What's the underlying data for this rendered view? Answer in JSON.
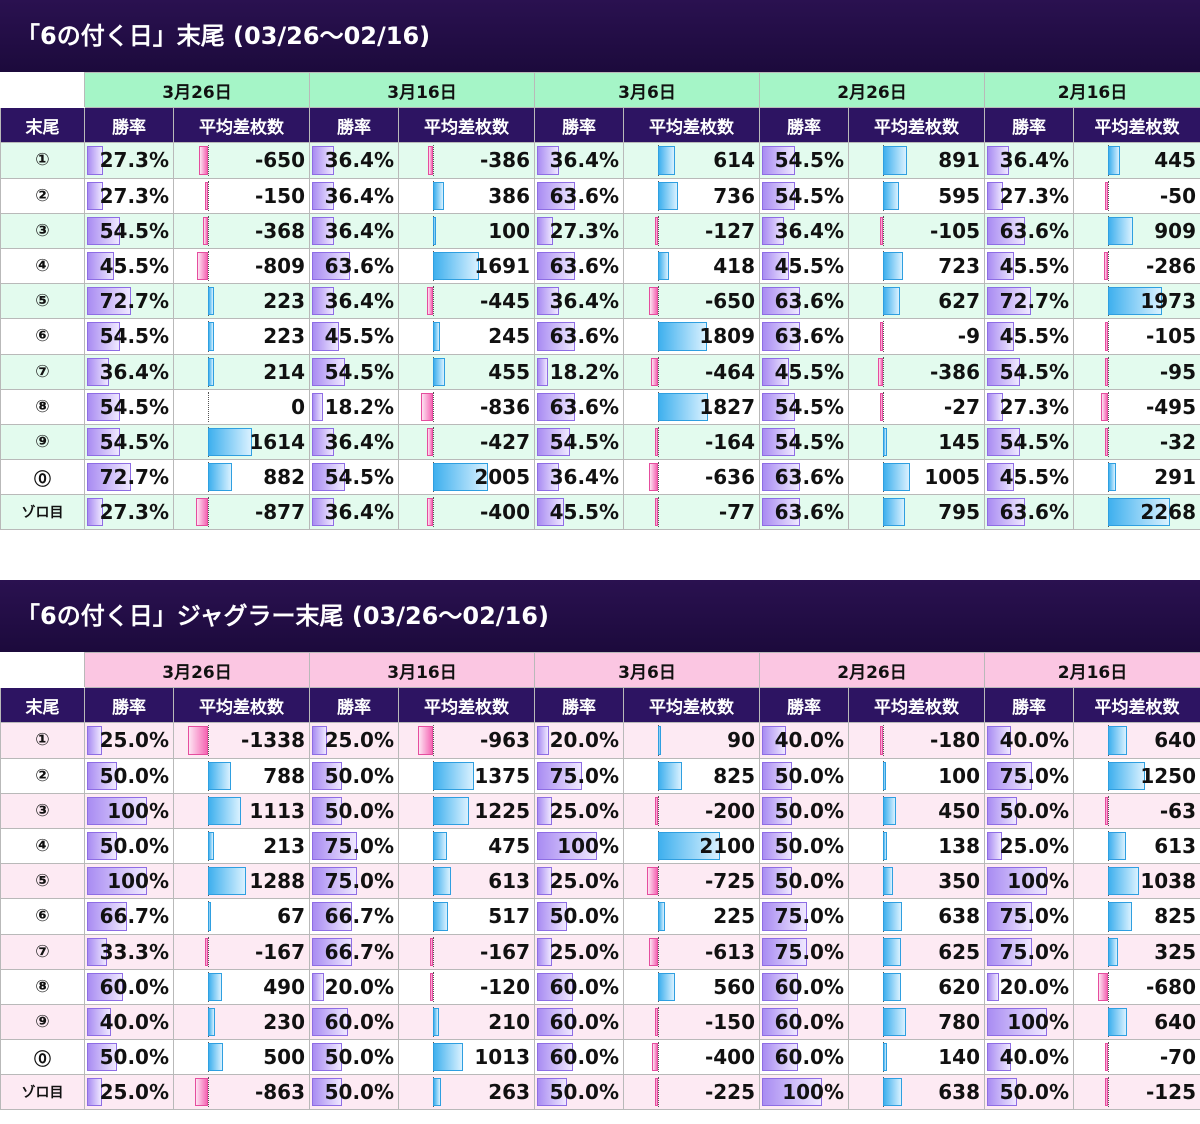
{
  "dates": [
    "3月26日",
    "3月16日",
    "3月6日",
    "2月26日",
    "2月16日"
  ],
  "headers": {
    "row": "末尾",
    "rate": "勝率",
    "diff": "平均差枚数"
  },
  "row_labels": [
    "①",
    "②",
    "③",
    "④",
    "⑤",
    "⑥",
    "⑦",
    "⑧",
    "⑨",
    "⓪",
    "ゾロ目"
  ],
  "colors": {
    "title_bg": "#1c0a3c",
    "header_bg": "#2d1462",
    "tbl1_date_bg": "#a5f5c7",
    "tbl1_alt_row": "#e3fbee",
    "tbl2_date_bg": "#fbc6e2",
    "tbl2_alt_row": "#fdeaf3",
    "rate_bar": "#a98cf2",
    "positive_bar": "#3fb0ee",
    "negative_bar": "#f566b4"
  },
  "tables": [
    {
      "title": "「6の付く日」末尾 (03/26〜02/16)",
      "rows": [
        [
          [
            "27.3%",
            -650
          ],
          [
            "36.4%",
            -386
          ],
          [
            "36.4%",
            614
          ],
          [
            "54.5%",
            891
          ],
          [
            "36.4%",
            445
          ]
        ],
        [
          [
            "27.3%",
            -150
          ],
          [
            "36.4%",
            386
          ],
          [
            "63.6%",
            736
          ],
          [
            "54.5%",
            595
          ],
          [
            "27.3%",
            -50
          ]
        ],
        [
          [
            "54.5%",
            -368
          ],
          [
            "36.4%",
            100
          ],
          [
            "27.3%",
            -127
          ],
          [
            "36.4%",
            -105
          ],
          [
            "63.6%",
            909
          ]
        ],
        [
          [
            "45.5%",
            -809
          ],
          [
            "63.6%",
            1691
          ],
          [
            "63.6%",
            418
          ],
          [
            "45.5%",
            723
          ],
          [
            "45.5%",
            -286
          ]
        ],
        [
          [
            "72.7%",
            223
          ],
          [
            "36.4%",
            -445
          ],
          [
            "36.4%",
            -650
          ],
          [
            "63.6%",
            627
          ],
          [
            "72.7%",
            1973
          ]
        ],
        [
          [
            "54.5%",
            223
          ],
          [
            "45.5%",
            245
          ],
          [
            "63.6%",
            1809
          ],
          [
            "63.6%",
            -9
          ],
          [
            "45.5%",
            -105
          ]
        ],
        [
          [
            "36.4%",
            214
          ],
          [
            "54.5%",
            455
          ],
          [
            "18.2%",
            -464
          ],
          [
            "45.5%",
            -386
          ],
          [
            "54.5%",
            -95
          ]
        ],
        [
          [
            "54.5%",
            0
          ],
          [
            "18.2%",
            -836
          ],
          [
            "63.6%",
            1827
          ],
          [
            "54.5%",
            -27
          ],
          [
            "27.3%",
            -495
          ]
        ],
        [
          [
            "54.5%",
            1614
          ],
          [
            "36.4%",
            -427
          ],
          [
            "54.5%",
            -164
          ],
          [
            "54.5%",
            145
          ],
          [
            "54.5%",
            -32
          ]
        ],
        [
          [
            "72.7%",
            882
          ],
          [
            "54.5%",
            2005
          ],
          [
            "36.4%",
            -636
          ],
          [
            "63.6%",
            1005
          ],
          [
            "45.5%",
            291
          ]
        ],
        [
          [
            "27.3%",
            -877
          ],
          [
            "36.4%",
            -400
          ],
          [
            "45.5%",
            -77
          ],
          [
            "63.6%",
            795
          ],
          [
            "63.6%",
            2268
          ]
        ]
      ]
    },
    {
      "title": "「6の付く日」ジャグラー末尾 (03/26〜02/16)",
      "rows": [
        [
          [
            "25.0%",
            -1338
          ],
          [
            "25.0%",
            -963
          ],
          [
            "20.0%",
            90
          ],
          [
            "40.0%",
            -180
          ],
          [
            "40.0%",
            640
          ]
        ],
        [
          [
            "50.0%",
            788
          ],
          [
            "50.0%",
            1375
          ],
          [
            "75.0%",
            825
          ],
          [
            "50.0%",
            100
          ],
          [
            "75.0%",
            1250
          ]
        ],
        [
          [
            "100%",
            1113
          ],
          [
            "50.0%",
            1225
          ],
          [
            "25.0%",
            -200
          ],
          [
            "50.0%",
            450
          ],
          [
            "50.0%",
            -63
          ]
        ],
        [
          [
            "50.0%",
            213
          ],
          [
            "75.0%",
            475
          ],
          [
            "100%",
            2100
          ],
          [
            "50.0%",
            138
          ],
          [
            "25.0%",
            613
          ]
        ],
        [
          [
            "100%",
            1288
          ],
          [
            "75.0%",
            613
          ],
          [
            "25.0%",
            -725
          ],
          [
            "50.0%",
            350
          ],
          [
            "100%",
            1038
          ]
        ],
        [
          [
            "66.7%",
            67
          ],
          [
            "66.7%",
            517
          ],
          [
            "50.0%",
            225
          ],
          [
            "75.0%",
            638
          ],
          [
            "75.0%",
            825
          ]
        ],
        [
          [
            "33.3%",
            -167
          ],
          [
            "66.7%",
            -167
          ],
          [
            "25.0%",
            -613
          ],
          [
            "75.0%",
            625
          ],
          [
            "75.0%",
            325
          ]
        ],
        [
          [
            "60.0%",
            490
          ],
          [
            "20.0%",
            -120
          ],
          [
            "60.0%",
            560
          ],
          [
            "60.0%",
            620
          ],
          [
            "20.0%",
            -680
          ]
        ],
        [
          [
            "40.0%",
            230
          ],
          [
            "60.0%",
            210
          ],
          [
            "60.0%",
            -150
          ],
          [
            "60.0%",
            780
          ],
          [
            "100%",
            640
          ]
        ],
        [
          [
            "50.0%",
            500
          ],
          [
            "50.0%",
            1013
          ],
          [
            "60.0%",
            -400
          ],
          [
            "60.0%",
            140
          ],
          [
            "40.0%",
            -70
          ]
        ],
        [
          [
            "25.0%",
            -863
          ],
          [
            "50.0%",
            263
          ],
          [
            "50.0%",
            -225
          ],
          [
            "100%",
            638
          ],
          [
            "50.0%",
            -125
          ]
        ]
      ]
    }
  ]
}
